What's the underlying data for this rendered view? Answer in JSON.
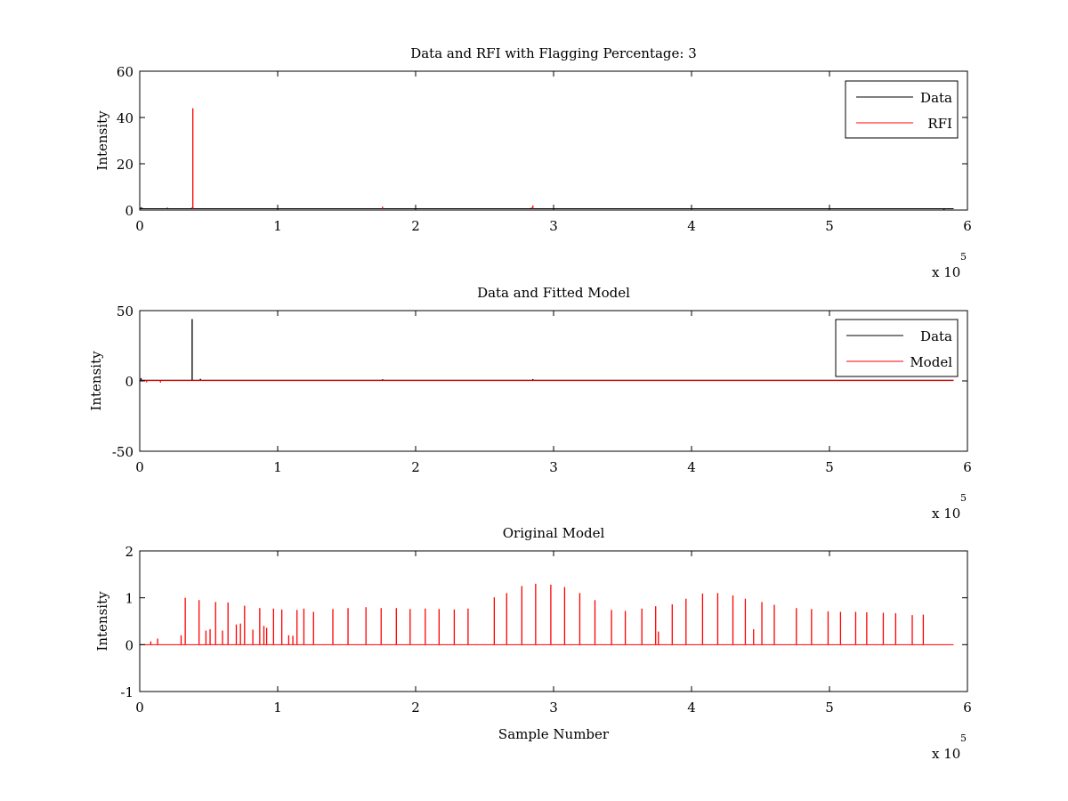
{
  "chart_data": [
    {
      "type": "line",
      "title": "Data and RFI with Flagging Percentage: 3",
      "xlabel": "",
      "ylabel": "Intensity",
      "xlim": [
        0,
        6
      ],
      "ylim": [
        0,
        60
      ],
      "xticks": [
        "0",
        "1",
        "2",
        "3",
        "4",
        "5",
        "6"
      ],
      "yticks": [
        "0",
        "20",
        "40",
        "60"
      ],
      "xexp_base": "x 10",
      "xexp_power": "5",
      "legend": "top-right",
      "legend_entries": [
        {
          "name": "Data",
          "color": "#000000"
        },
        {
          "name": "RFI",
          "color": "#ff0000"
        }
      ],
      "series": [
        {
          "name": "Data",
          "color": "#000000",
          "baseline": 0.6,
          "x": [
            0.01,
            0.02,
            0.2,
            0.38,
            2.84,
            5.83
          ],
          "y": [
            1.2,
            0.9,
            1.0,
            1.1,
            1.0,
            0.2
          ]
        },
        {
          "name": "RFI",
          "color": "#ff0000",
          "baseline": null,
          "x": [
            0.385,
            1.76,
            2.85
          ],
          "y": [
            44,
            1.5,
            2.0
          ]
        }
      ]
    },
    {
      "type": "line",
      "title": "Data and Fitted Model",
      "xlabel": "",
      "ylabel": "Intensity",
      "xlim": [
        0,
        6
      ],
      "ylim": [
        -50,
        50
      ],
      "xticks": [
        "0",
        "1",
        "2",
        "3",
        "4",
        "5",
        "6"
      ],
      "yticks": [
        "-50",
        "0",
        "50"
      ],
      "xexp_base": "x 10",
      "xexp_power": "5",
      "legend": "top-right",
      "legend_entries": [
        {
          "name": "Data",
          "color": "#000000"
        },
        {
          "name": "Model",
          "color": "#ff0000"
        }
      ],
      "series": [
        {
          "name": "Data",
          "color": "#000000",
          "baseline": 0.5,
          "x": [
            0.01,
            0.38,
            0.44,
            1.76,
            2.85
          ],
          "y": [
            2.0,
            44,
            1.5,
            1.2,
            1.3
          ]
        },
        {
          "name": "Model",
          "color": "#ff0000",
          "baseline": 0.2,
          "x": [
            0.05,
            0.15
          ],
          "y": [
            -1.0,
            -1.2
          ]
        }
      ]
    },
    {
      "type": "line",
      "title": "Original Model",
      "xlabel": "Sample Number",
      "ylabel": "Intensity",
      "xlim": [
        0,
        6
      ],
      "ylim": [
        -1,
        2
      ],
      "xticks": [
        "0",
        "1",
        "2",
        "3",
        "4",
        "5",
        "6"
      ],
      "yticks": [
        "-1",
        "0",
        "1",
        "2"
      ],
      "xexp_base": "x 10",
      "xexp_power": "5",
      "legend": "none",
      "legend_entries": [],
      "series": [
        {
          "name": "",
          "color": "#ff0000",
          "baseline": 0.0,
          "x": [
            0.08,
            0.13,
            0.3,
            0.33,
            0.43,
            0.48,
            0.51,
            0.55,
            0.6,
            0.64,
            0.7,
            0.73,
            0.76,
            0.82,
            0.87,
            0.9,
            0.92,
            0.97,
            1.03,
            1.08,
            1.11,
            1.14,
            1.19,
            1.26,
            1.4,
            1.51,
            1.64,
            1.75,
            1.86,
            1.96,
            2.07,
            2.17,
            2.28,
            2.38,
            2.57,
            2.66,
            2.77,
            2.87,
            2.98,
            3.08,
            3.19,
            3.3,
            3.42,
            3.52,
            3.64,
            3.74,
            3.76,
            3.86,
            3.96,
            4.08,
            4.19,
            4.3,
            4.39,
            4.45,
            4.51,
            4.6,
            4.76,
            4.87,
            4.99,
            5.08,
            5.19,
            5.27,
            5.39,
            5.48,
            5.6,
            5.68
          ],
          "y": [
            0.07,
            0.13,
            0.2,
            1.0,
            0.95,
            0.3,
            0.33,
            0.91,
            0.3,
            0.9,
            0.43,
            0.45,
            0.83,
            0.32,
            0.78,
            0.4,
            0.36,
            0.77,
            0.75,
            0.2,
            0.19,
            0.74,
            0.77,
            0.7,
            0.76,
            0.78,
            0.8,
            0.78,
            0.78,
            0.76,
            0.77,
            0.76,
            0.75,
            0.77,
            1.01,
            1.1,
            1.25,
            1.3,
            1.28,
            1.23,
            1.1,
            0.95,
            0.74,
            0.72,
            0.77,
            0.82,
            0.28,
            0.86,
            0.98,
            1.09,
            1.1,
            1.05,
            0.98,
            0.33,
            0.91,
            0.85,
            0.78,
            0.76,
            0.71,
            0.7,
            0.7,
            0.69,
            0.68,
            0.67,
            0.63,
            0.64
          ]
        }
      ]
    }
  ]
}
